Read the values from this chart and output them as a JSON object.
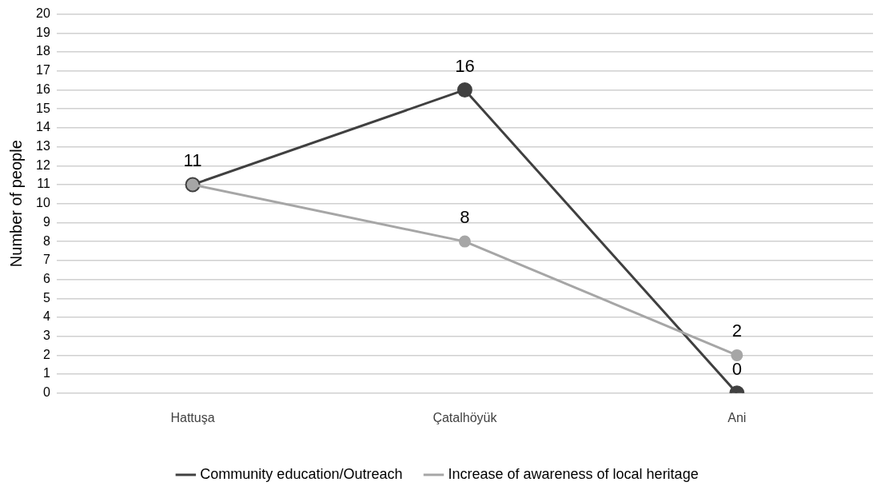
{
  "chart_data": {
    "type": "line",
    "ylabel": "Number of people",
    "categories": [
      "Hattuşa",
      "Çatalhöyük",
      "Ani"
    ],
    "series": [
      {
        "name": "Community education/Outreach",
        "color": "#404040",
        "values": [
          11,
          16,
          0
        ],
        "value_labels": [
          "11",
          "16",
          "0"
        ]
      },
      {
        "name": "Increase of awareness of local heritage",
        "color": "#a6a6a6",
        "values": [
          11,
          8,
          2
        ],
        "value_labels": [
          null,
          "8",
          "2"
        ]
      }
    ],
    "ylim": [
      0,
      20
    ],
    "yticks": [
      0,
      1,
      2,
      3,
      4,
      5,
      6,
      7,
      8,
      9,
      10,
      11,
      12,
      13,
      14,
      15,
      16,
      17,
      18,
      19,
      20
    ],
    "grid": "y",
    "legend": "bottom",
    "marker": "circle",
    "line_style": "solid"
  }
}
